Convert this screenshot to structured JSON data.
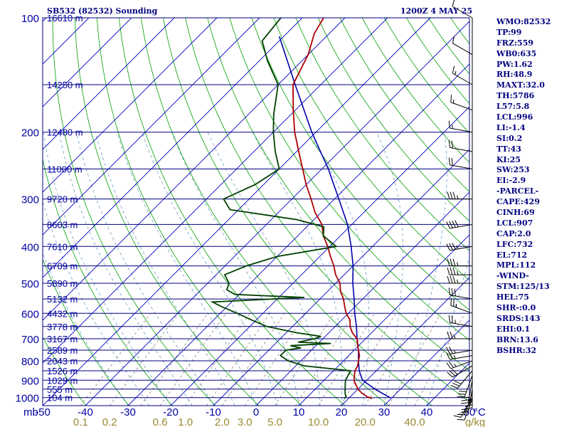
{
  "header": {
    "station_title": "SB532 (82532) Sounding",
    "valid_time": "1200Z  4 MAY 25"
  },
  "colors": {
    "isobar": "#000080",
    "isotherm": "#0000c0",
    "dry_adiabat": "#00a000",
    "moist_adiabat": "#6a9ec8",
    "mixing_ratio": "#8a7a6a",
    "temperature": "#aa0000",
    "dewpoint": "#004000",
    "parcel": "#0000aa",
    "axis_text": "#0000a0",
    "mixing_text": "#9a8a30",
    "wind": "#000000"
  },
  "chart_data": {
    "type": "line",
    "chart_kind": "skew-T log-P sounding diagram",
    "xlabel_left": "mb",
    "xlabel_right": "°C",
    "mixing_unit": "g/kg",
    "pressure_range_hpa": [
      100,
      1050
    ],
    "temperature_range_c": [
      -50,
      50
    ],
    "temperature_ticks": [
      -50,
      -40,
      -30,
      -20,
      -10,
      0,
      10,
      20,
      30,
      40,
      50
    ],
    "temperature_tick_labels": [
      "-50",
      "-40",
      "-30",
      "-20",
      "-10",
      "0",
      "10",
      "20",
      "30",
      "40",
      "50"
    ],
    "pressure_ticks": [
      {
        "p": 100,
        "label": "100",
        "height_label": "16610 m"
      },
      {
        "p": 150,
        "label": "",
        "height_label": "14250 m"
      },
      {
        "p": 200,
        "label": "200",
        "height_label": "12480 m"
      },
      {
        "p": 250,
        "label": "",
        "height_label": "11000 m"
      },
      {
        "p": 300,
        "label": "300",
        "height_label": "9720 m"
      },
      {
        "p": 350,
        "label": "",
        "height_label": "8603 m"
      },
      {
        "p": 400,
        "label": "400",
        "height_label": "7610 m"
      },
      {
        "p": 450,
        "label": "",
        "height_label": "6709 m"
      },
      {
        "p": 500,
        "label": "500",
        "height_label": "5890 m"
      },
      {
        "p": 550,
        "label": "",
        "height_label": "5132 m"
      },
      {
        "p": 600,
        "label": "600",
        "height_label": "4432 m"
      },
      {
        "p": 650,
        "label": "",
        "height_label": "3778 m"
      },
      {
        "p": 700,
        "label": "700",
        "height_label": "3167 m"
      },
      {
        "p": 750,
        "label": "",
        "height_label": "2589 m"
      },
      {
        "p": 800,
        "label": "800",
        "height_label": "2043 m"
      },
      {
        "p": 850,
        "label": "",
        "height_label": "1526 m"
      },
      {
        "p": 900,
        "label": "900",
        "height_label": "1029 m"
      },
      {
        "p": 950,
        "label": "",
        "height_label": "555 m"
      },
      {
        "p": 1000,
        "label": "1000",
        "height_label": "104 m"
      }
    ],
    "mixing_ratio_labels": [
      {
        "value": 0.1,
        "label": "0.1"
      },
      {
        "value": 0.2,
        "label": "0.2"
      },
      {
        "value": 0.6,
        "label": "0.6"
      },
      {
        "value": 1.0,
        "label": "1.0"
      },
      {
        "value": 2.0,
        "label": "2.0"
      },
      {
        "value": 3.0,
        "label": "3.0"
      },
      {
        "value": 5.0,
        "label": "5.0"
      },
      {
        "value": 10.0,
        "label": "10.0"
      },
      {
        "value": 20.0,
        "label": "20.0"
      },
      {
        "value": 40.0,
        "label": "40.0"
      }
    ],
    "series": [
      {
        "role": "temperature",
        "points": [
          [
            1006,
            25.5
          ],
          [
            995,
            24.0
          ],
          [
            975,
            22.0
          ],
          [
            950,
            20.0
          ],
          [
            925,
            18.5
          ],
          [
            900,
            17.0
          ],
          [
            875,
            16.0
          ],
          [
            850,
            15.0
          ],
          [
            825,
            14.5
          ],
          [
            800,
            13.5
          ],
          [
            775,
            12.5
          ],
          [
            750,
            11.0
          ],
          [
            725,
            9.5
          ],
          [
            700,
            8.0
          ],
          [
            675,
            5.5
          ],
          [
            650,
            3.5
          ],
          [
            625,
            2.0
          ],
          [
            600,
            -0.5
          ],
          [
            575,
            -2.5
          ],
          [
            550,
            -4.5
          ],
          [
            525,
            -7.0
          ],
          [
            500,
            -9.0
          ],
          [
            475,
            -12.0
          ],
          [
            450,
            -14.5
          ],
          [
            425,
            -17.5
          ],
          [
            400,
            -20.5
          ],
          [
            375,
            -24.0
          ],
          [
            350,
            -27.0
          ],
          [
            325,
            -31.5
          ],
          [
            300,
            -35.5
          ],
          [
            275,
            -40.0
          ],
          [
            250,
            -44.5
          ],
          [
            225,
            -49.5
          ],
          [
            200,
            -55.0
          ],
          [
            175,
            -60.5
          ],
          [
            150,
            -66.5
          ],
          [
            125,
            -70.0
          ],
          [
            110,
            -73.5
          ],
          [
            100,
            -75.0
          ]
        ]
      },
      {
        "role": "dewpoint",
        "points": [
          [
            1006,
            19.0
          ],
          [
            995,
            19.0
          ],
          [
            975,
            18.0
          ],
          [
            950,
            17.0
          ],
          [
            925,
            16.0
          ],
          [
            900,
            15.0
          ],
          [
            875,
            14.5
          ],
          [
            850,
            14.0
          ],
          [
            825,
            2.0
          ],
          [
            800,
            -3.0
          ],
          [
            775,
            -6.0
          ],
          [
            750,
            -6.0
          ],
          [
            740,
            -3.0
          ],
          [
            730,
            -6.0
          ],
          [
            720,
            3.0
          ],
          [
            715,
            -5.0
          ],
          [
            700,
            -2.0
          ],
          [
            690,
            -1.0
          ],
          [
            675,
            -7.5
          ],
          [
            650,
            -16.0
          ],
          [
            625,
            -21.0
          ],
          [
            600,
            -26.0
          ],
          [
            575,
            -31.5
          ],
          [
            560,
            -34.5
          ],
          [
            545,
            -14.0
          ],
          [
            535,
            -31.0
          ],
          [
            520,
            -34.0
          ],
          [
            500,
            -35.0
          ],
          [
            475,
            -38.0
          ],
          [
            450,
            -35.0
          ],
          [
            425,
            -30.0
          ],
          [
            400,
            -18.5
          ],
          [
            375,
            -24.0
          ],
          [
            355,
            -26.0
          ],
          [
            340,
            -34.0
          ],
          [
            320,
            -52.0
          ],
          [
            300,
            -56.0
          ],
          [
            275,
            -52.0
          ],
          [
            250,
            -50.0
          ],
          [
            225,
            -55.0
          ],
          [
            200,
            -60.0
          ],
          [
            180,
            -64.0
          ],
          [
            150,
            -70.0
          ],
          [
            130,
            -78.0
          ],
          [
            115,
            -84.0
          ],
          [
            100,
            -85.0
          ]
        ]
      },
      {
        "role": "parcel",
        "points": [
          [
            1000,
            29.5
          ],
          [
            950,
            24.0
          ],
          [
            900,
            19.0
          ],
          [
            850,
            16.0
          ],
          [
            800,
            13.5
          ],
          [
            750,
            11.0
          ],
          [
            700,
            8.0
          ],
          [
            650,
            5.0
          ],
          [
            600,
            1.5
          ],
          [
            550,
            -2.0
          ],
          [
            500,
            -6.0
          ],
          [
            450,
            -10.0
          ],
          [
            400,
            -15.0
          ],
          [
            350,
            -21.0
          ],
          [
            300,
            -29.0
          ],
          [
            250,
            -38.5
          ],
          [
            200,
            -51.0
          ],
          [
            150,
            -66.0
          ],
          [
            112,
            -81.0
          ]
        ]
      }
    ],
    "wind_barbs": [
      {
        "p": 1006,
        "dir": 200,
        "spd": 10
      },
      {
        "p": 1000,
        "dir": 210,
        "spd": 15
      },
      {
        "p": 975,
        "dir": 200,
        "spd": 15
      },
      {
        "p": 950,
        "dir": 190,
        "spd": 20
      },
      {
        "p": 925,
        "dir": 180,
        "spd": 25
      },
      {
        "p": 900,
        "dir": 190,
        "spd": 30
      },
      {
        "p": 875,
        "dir": 200,
        "spd": 30
      },
      {
        "p": 850,
        "dir": 220,
        "spd": 30
      },
      {
        "p": 825,
        "dir": 240,
        "spd": 30
      },
      {
        "p": 800,
        "dir": 250,
        "spd": 25
      },
      {
        "p": 775,
        "dir": 260,
        "spd": 25
      },
      {
        "p": 750,
        "dir": 260,
        "spd": 25
      },
      {
        "p": 700,
        "dir": 270,
        "spd": 25
      },
      {
        "p": 650,
        "dir": 280,
        "spd": 25
      },
      {
        "p": 600,
        "dir": 290,
        "spd": 25
      },
      {
        "p": 550,
        "dir": 280,
        "spd": 30
      },
      {
        "p": 500,
        "dir": 270,
        "spd": 35
      },
      {
        "p": 475,
        "dir": 270,
        "spd": 35
      },
      {
        "p": 450,
        "dir": 270,
        "spd": 35
      },
      {
        "p": 400,
        "dir": 260,
        "spd": 35
      },
      {
        "p": 350,
        "dir": 260,
        "spd": 40
      },
      {
        "p": 300,
        "dir": 270,
        "spd": 35
      },
      {
        "p": 250,
        "dir": 280,
        "spd": 20
      },
      {
        "p": 225,
        "dir": 280,
        "spd": 20
      },
      {
        "p": 200,
        "dir": 280,
        "spd": 15
      },
      {
        "p": 175,
        "dir": 290,
        "spd": 15
      },
      {
        "p": 150,
        "dir": 300,
        "spd": 15
      },
      {
        "p": 125,
        "dir": 300,
        "spd": 10
      },
      {
        "p": 100,
        "dir": 300,
        "spd": 10
      }
    ]
  },
  "indices": [
    "WMO:82532",
    "TP:99",
    "FRZ:559",
    "WB0:635",
    "PW:1.62",
    "RH:48.9",
    "MAXT:32.0",
    "TH:5786",
    "L57:5.8",
    "LCL:996",
    "LI:-1.4",
    "SI:0.2",
    "TT:43",
    "KI:25",
    "SW:253",
    "EI:-2.9",
    "-PARCEL-",
    "CAPE:429",
    "CINH:69",
    "LCL:907",
    "CAP:2.0",
    "LFC:732",
    "EL:712",
    "MPL:112",
    "-WIND-",
    "STM:125/13",
    "HEL:75",
    "SHR-:0.0",
    "SRDS:143",
    "EHI:0.1",
    "BRN:13.6",
    "BSHR:32"
  ]
}
